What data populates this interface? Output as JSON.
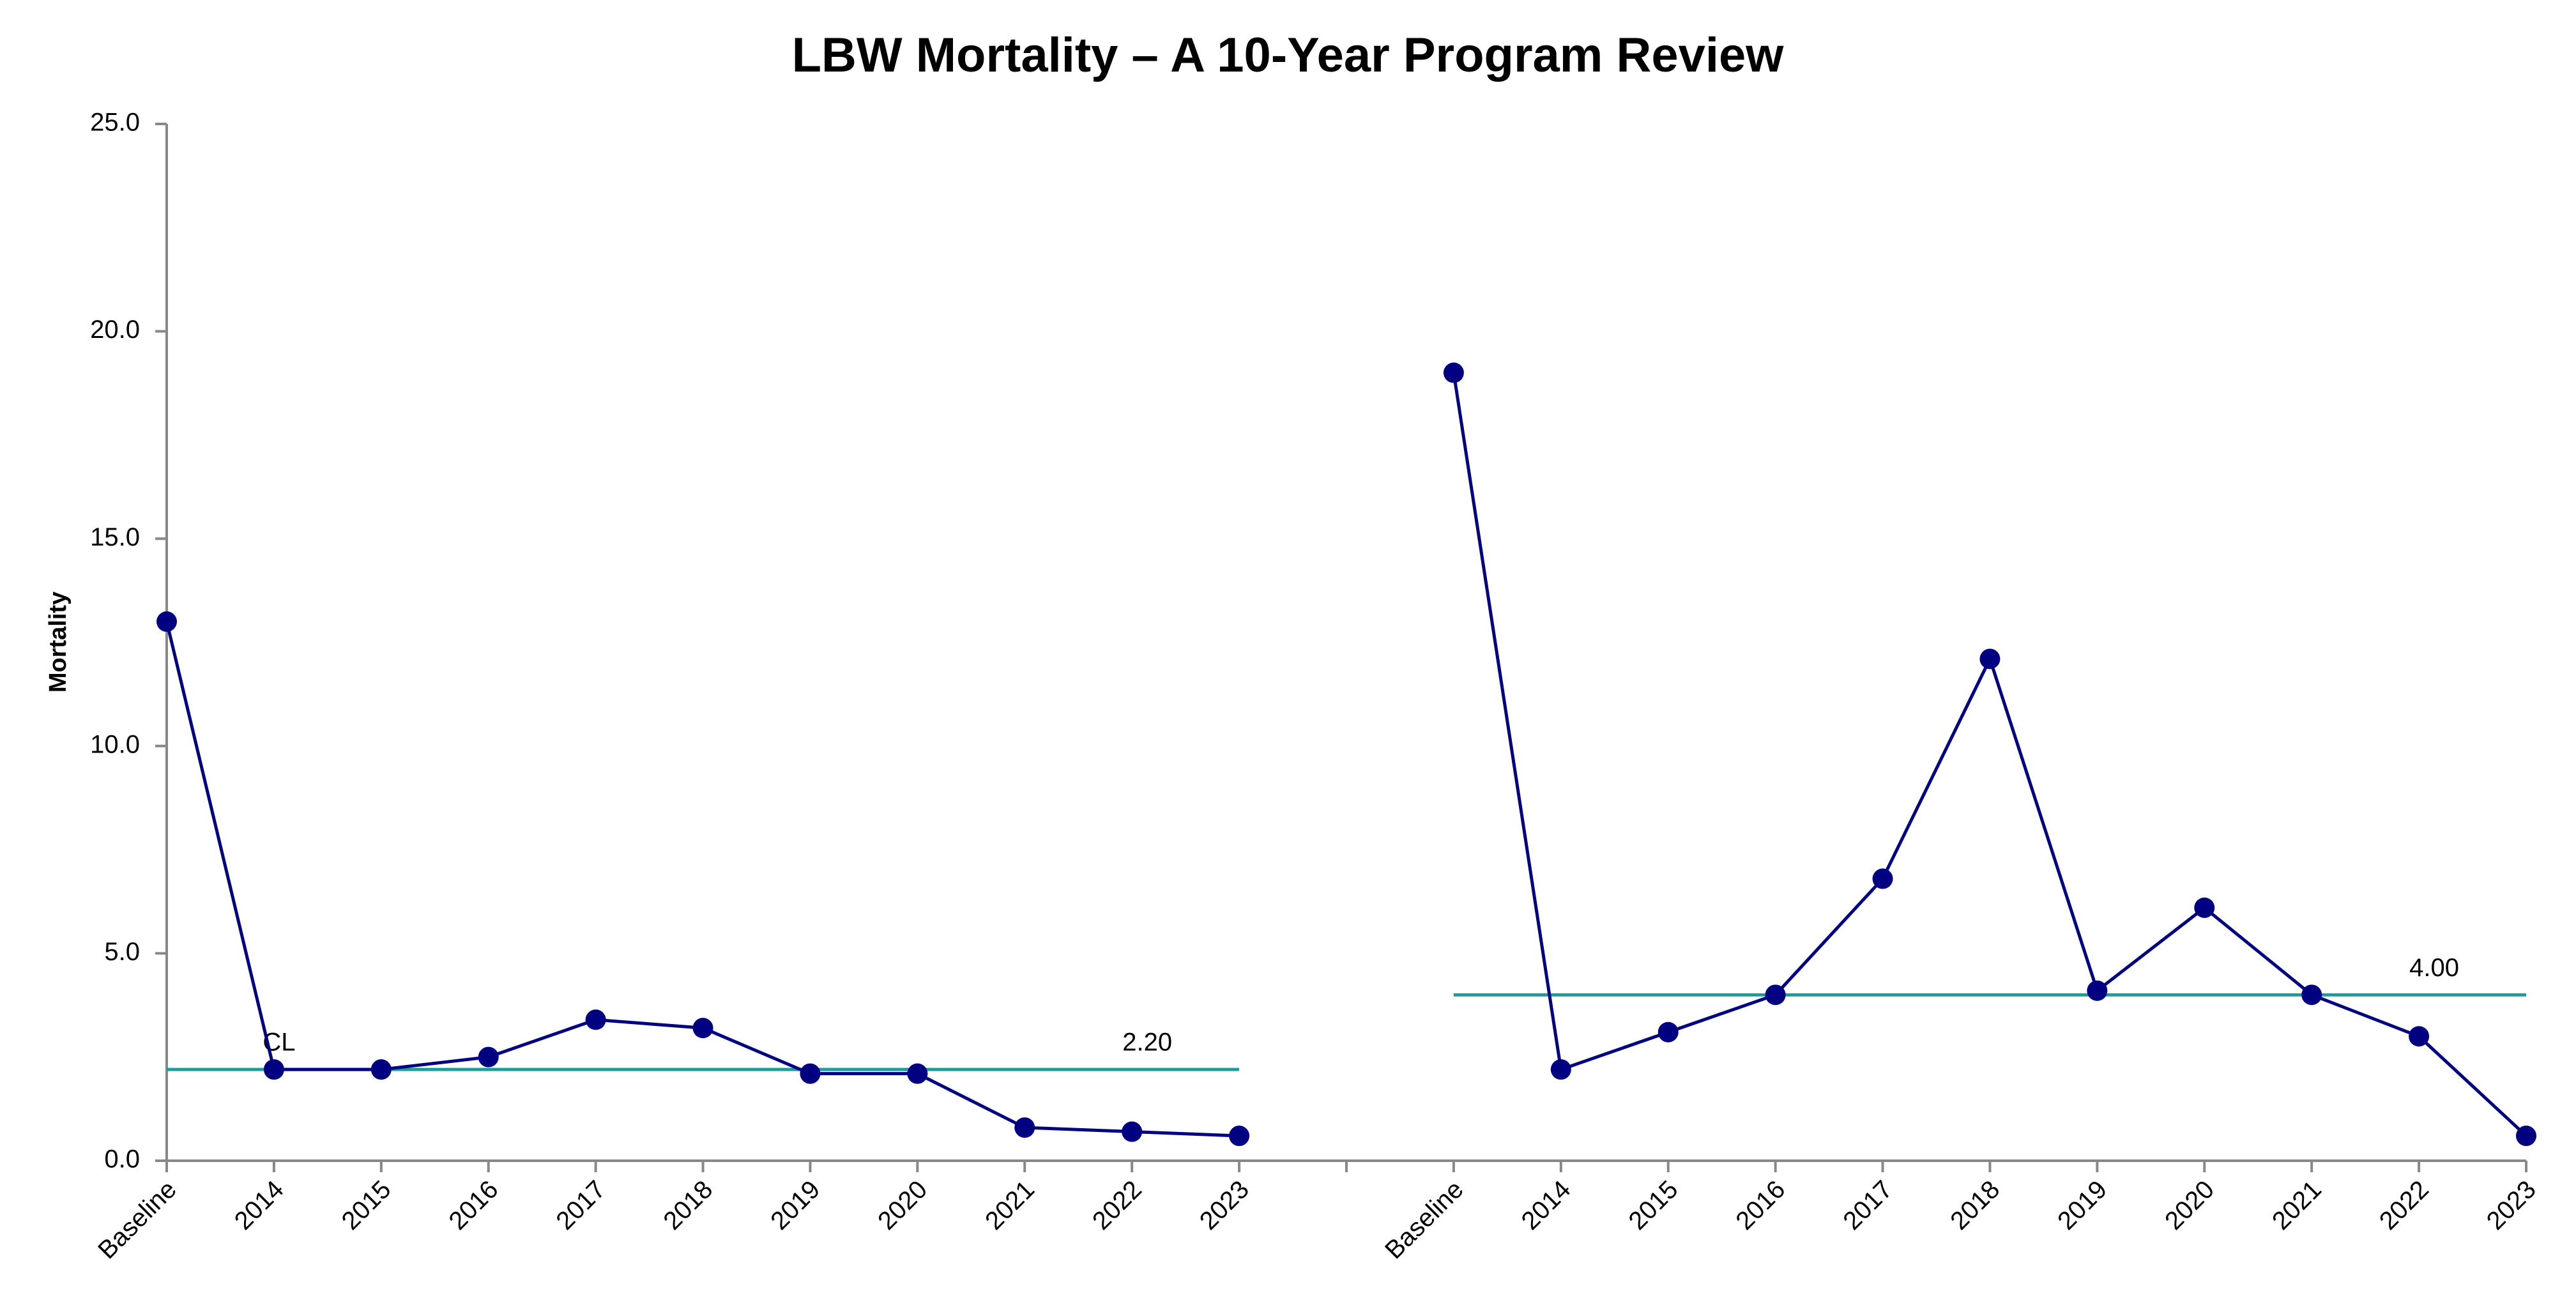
{
  "chart_data": {
    "type": "line",
    "title": "LBW Mortality – A 10-Year Program Review",
    "y_label": "Mortality",
    "categories": [
      "Baseline",
      "2014",
      "2015",
      "2016",
      "2017",
      "2018",
      "2019",
      "2020",
      "2021",
      "2022",
      "2023",
      null,
      "Baseline",
      "2014",
      "2015",
      "2016",
      "2017",
      "2018",
      "2019",
      "2020",
      "2021",
      "2022",
      "2023"
    ],
    "series": [
      {
        "color": "#000080",
        "markers": true,
        "values": [
          13.0,
          2.2,
          2.2,
          2.5,
          3.4,
          3.2,
          2.1,
          2.1,
          0.8,
          0.7,
          0.6,
          null,
          19.0,
          2.2,
          3.1,
          4.0,
          6.8,
          12.1,
          4.1,
          6.1,
          4.0,
          3.0,
          0.6
        ]
      },
      {
        "name": "CL",
        "color": "#1a9e9a",
        "markers": false,
        "values": [
          2.2,
          2.2,
          2.2,
          2.2,
          2.2,
          2.2,
          2.2,
          2.2,
          2.2,
          2.2,
          2.2,
          null,
          4.0,
          4.0,
          4.0,
          4.0,
          4.0,
          4.0,
          4.0,
          4.0,
          4.0,
          4.0,
          4.0
        ],
        "value_labels": [
          null,
          null,
          null,
          null,
          null,
          null,
          null,
          null,
          null,
          "2.20",
          null,
          null,
          null,
          null,
          null,
          null,
          null,
          null,
          null,
          null,
          null,
          "4.00",
          null
        ]
      }
    ],
    "ylim": [
      0,
      25
    ],
    "yticks": [
      {
        "value": 0,
        "label": "0.0"
      },
      {
        "value": 5,
        "label": "5.0"
      },
      {
        "value": 10,
        "label": "10.0"
      },
      {
        "value": 15,
        "label": "15.0"
      },
      {
        "value": 20,
        "label": "20.0"
      },
      {
        "value": 25,
        "label": "25.0"
      }
    ],
    "grid": false
  }
}
